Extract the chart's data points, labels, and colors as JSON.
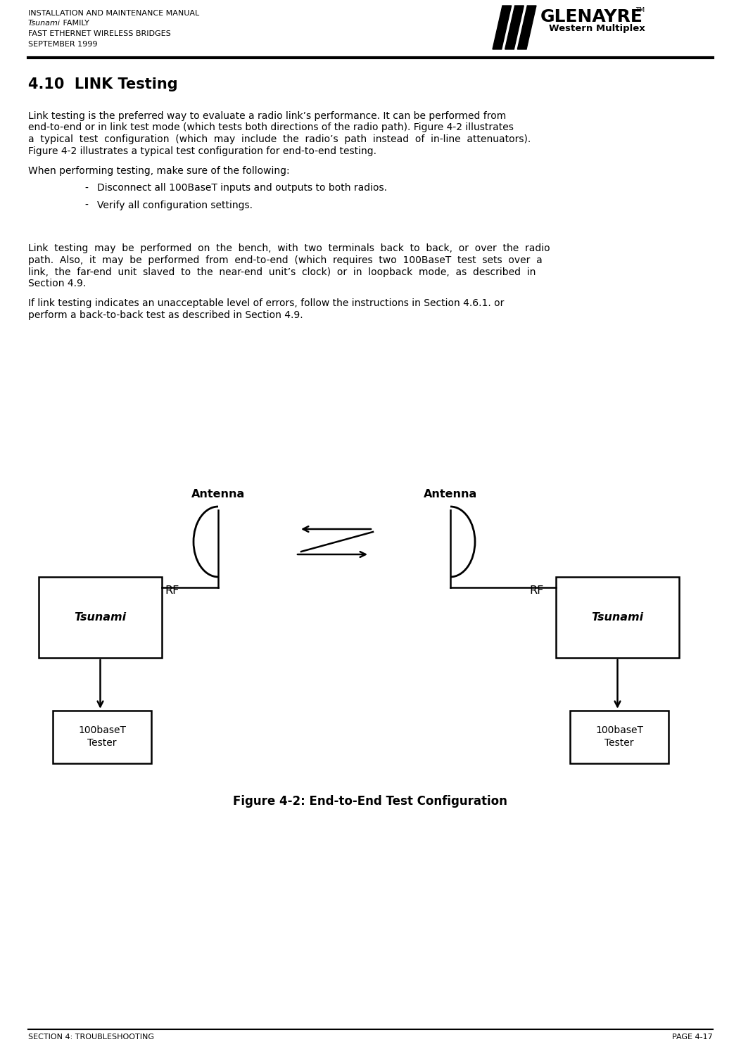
{
  "header_line1": "INSTALLATION AND MAINTENANCE MANUAL",
  "header_line2_italic": "Tsunami",
  "header_line2_rest": " FAMILY",
  "header_line3": "FAST ETHERNET WIRELESS BRIDGES",
  "header_line4": "SEPTEMBER 1999",
  "section_title": "4.10  LINK Testing",
  "para1_lines": [
    "Link testing is the preferred way to evaluate a radio link’s performance. It can be performed from",
    "end-to-end or in link test mode (which tests both directions of the radio path). Figure 4-2 illustrates",
    "a  typical  test  configuration  (which  may  include  the  radio’s  path  instead  of  in-line  attenuators).",
    "Figure 4-2 illustrates a typical test configuration for end-to-end testing."
  ],
  "para2": "When performing testing, make sure of the following:",
  "bullet1": "Disconnect all 100BaseT inputs and outputs to both radios.",
  "bullet2": "Verify all configuration settings.",
  "para3_lines": [
    "Link  testing  may  be  performed  on  the  bench,  with  two  terminals  back  to  back,  or  over  the  radio",
    "path.  Also,  it  may  be  performed  from  end-to-end  (which  requires  two  100BaseT  test  sets  over  a",
    "link,  the  far-end  unit  slaved  to  the  near-end  unit’s  clock)  or  in  loopback  mode,  as  described  in",
    "Section 4.9."
  ],
  "para4_lines": [
    "If link testing indicates an unacceptable level of errors, follow the instructions in Section 4.6.1. or",
    "perform a back-to-back test as described in Section 4.9."
  ],
  "fig_caption": "Figure 4-2: End-to-End Test Configuration",
  "footer_left": "SECTION 4: TROUBLESHOOTING",
  "footer_right": "PAGE 4-17",
  "bg_color": "#ffffff",
  "text_color": "#000000"
}
